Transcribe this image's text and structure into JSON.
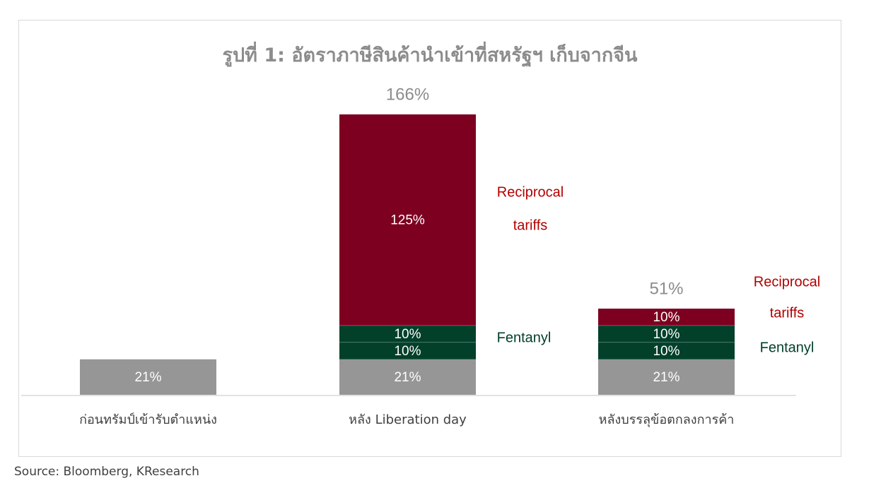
{
  "title": "รูปที่ 1: อัตราภาษีสินค้านำเข้าที่สหรัฐฯ เก็บจากจีน",
  "source": "Source: Bloomberg, KResearch",
  "colors": {
    "base": "#969696",
    "fentanyl": "#02402a",
    "reciprocal": "#7d0020",
    "total_label": "#8c8c8c",
    "reciprocal_label": "#b30000",
    "fentanyl_label": "#02402a",
    "axis": "#d9d9d9"
  },
  "chart_data": {
    "type": "bar",
    "stacked": true,
    "title": "รูปที่ 1: อัตราภาษีสินค้านำเข้าที่สหรัฐฯ เก็บจากจีน",
    "categories": [
      "ก่อนทรัมป์เข้ารับตำแหน่ง",
      "หลัง  Liberation day",
      "หลังบรรลุข้อตกลงการค้า"
    ],
    "series": [
      {
        "key": "base",
        "values": [
          21,
          21,
          21
        ],
        "labels": [
          "21%",
          "21%",
          "21%"
        ]
      },
      {
        "key": "fentanyl1",
        "values": [
          0,
          10,
          10
        ],
        "labels": [
          "",
          "10%",
          "10%"
        ]
      },
      {
        "key": "fentanyl2",
        "values": [
          0,
          10,
          10
        ],
        "labels": [
          "",
          "10%",
          "10%"
        ]
      },
      {
        "key": "reciprocal",
        "values": [
          0,
          125,
          10
        ],
        "labels": [
          "",
          "125%",
          "10%"
        ]
      }
    ],
    "totals": [
      "",
      "166%",
      "51%"
    ],
    "annotations": [
      {
        "category": 1,
        "lines": [
          "Reciprocal",
          "tariffs"
        ],
        "series": "reciprocal"
      },
      {
        "category": 1,
        "lines": [
          "Fentanyl"
        ],
        "series": "fentanyl"
      },
      {
        "category": 2,
        "lines": [
          "Reciprocal",
          "tariffs"
        ],
        "series": "reciprocal"
      },
      {
        "category": 2,
        "lines": [
          "Fentanyl"
        ],
        "series": "fentanyl"
      }
    ],
    "ylim": [
      0,
      166
    ],
    "grid": false,
    "legend": "none",
    "xlabel": "",
    "ylabel": ""
  }
}
